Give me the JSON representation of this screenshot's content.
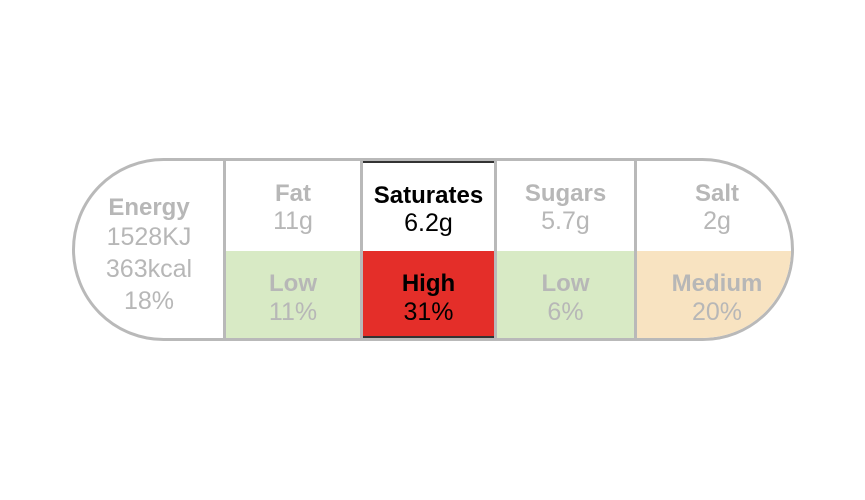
{
  "energy": {
    "label": "Energy",
    "kj": "1528KJ",
    "kcal": "363kcal",
    "ri": "18%"
  },
  "nutrients": [
    {
      "name": "Fat",
      "amount": "11g",
      "level": "Low",
      "ri": "11%",
      "color": "#d8eac5"
    },
    {
      "name": "Saturates",
      "amount": "6.2g",
      "level": "High",
      "ri": "31%",
      "color": "#e42e29"
    },
    {
      "name": "Sugars",
      "amount": "5.7g",
      "level": "Low",
      "ri": "6%",
      "color": "#d8eac5"
    },
    {
      "name": "Salt",
      "amount": "2g",
      "level": "Medium",
      "ri": "20%",
      "color": "#f8e3c1"
    }
  ],
  "colors": {
    "border": "#b9b9b9",
    "text_muted": "#b7b7b7",
    "text_strong": "#000000"
  }
}
